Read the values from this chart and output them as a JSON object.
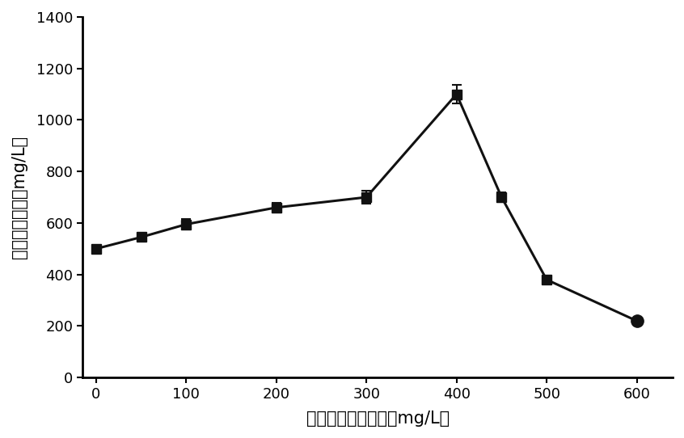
{
  "x": [
    0,
    50,
    100,
    200,
    300,
    400,
    450,
    500,
    600
  ],
  "y": [
    500,
    545,
    595,
    660,
    700,
    1100,
    700,
    380,
    220
  ],
  "yerr": [
    0,
    15,
    20,
    18,
    25,
    35,
    20,
    0,
    0
  ],
  "markers": [
    "s",
    "s",
    "s",
    "s",
    "s",
    "s",
    "s",
    "s",
    "o"
  ],
  "line_color": "#111111",
  "marker_color": "#111111",
  "xlabel": "培养基中的锁浓度（mg/L）",
  "ylabel": "胞内多糖产量（mg/L）",
  "xlim": [
    -15,
    640
  ],
  "ylim": [
    0,
    1400
  ],
  "xticks": [
    0,
    100,
    200,
    300,
    400,
    500,
    600
  ],
  "yticks": [
    0,
    200,
    400,
    600,
    800,
    1000,
    1200,
    1400
  ],
  "figsize": [
    8.46,
    5.42
  ],
  "dpi": 100
}
